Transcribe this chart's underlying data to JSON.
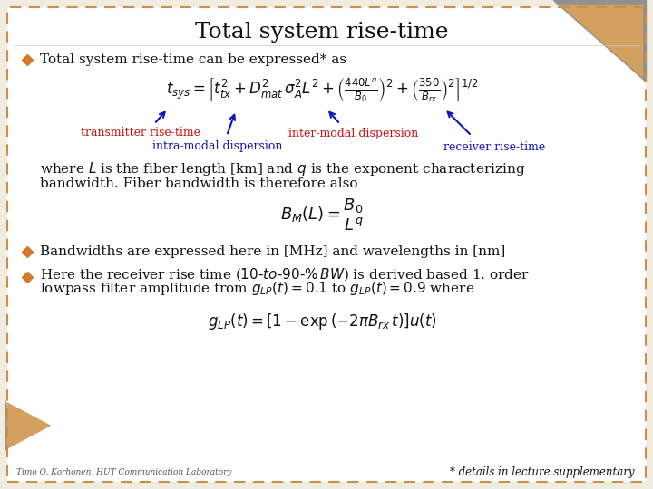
{
  "title": "Total system rise-time",
  "bg_color": "#ffffff",
  "border_color": "#c8904a",
  "slide_bg": "#f0ece0",
  "title_fontsize": 18,
  "body_fontsize": 11,
  "formula1": "$t_{sys} = \\left[ t_{tx}^2 + D_{mat}^2\\,\\sigma_A^2 L^2 + \\left(\\frac{440L^q}{B_0}\\right)^2 + \\left(\\frac{350}{B_{rx}}\\right)^2 \\right]^{1/2}$",
  "formula2": "$B_M(L) = \\dfrac{B_0}{L^q}$",
  "formula3": "$g_{LP}(t) = \\left[1 - \\exp\\left(-2\\pi B_{rx}\\,t\\right)\\right]u(t)$",
  "bullet1_text": "Total system rise-time can be expressed* as",
  "label_transmitter": "transmitter rise-time",
  "label_intramodal": "intra-modal dispersion",
  "label_intermodal": "inter-modal dispersion",
  "label_receiver": "receiver rise-time",
  "text_where": "where $L$ is the fiber length [km] and $q$ is the exponent characterizing",
  "text_bandwidth": "bandwidth. Fiber bandwidth is therefore also",
  "bullet2_text": "Bandwidths are expressed here in [MHz] and wavelengths in [nm]",
  "bullet3_line1": "Here the receiver rise time ($\\mathit{10\\text{-}to\\text{-}90\\text{-}\\%\\,BW}$) is derived based 1. order",
  "bullet3_line2": "lowpass filter amplitude from $g_{LP}(t){=}0.1$ to $g_{LP}(t){=}0.9$ where",
  "footer_left": "Timo O. Korhonen, HUT Communication Laboratory",
  "footer_right": "* details in lecture supplementary",
  "orange_color": "#d4782a",
  "red_color": "#cc1111",
  "blue_color": "#1111bb",
  "dark_color": "#111111",
  "triangle_color": "#d4a060",
  "triangle_gray": "#909090"
}
